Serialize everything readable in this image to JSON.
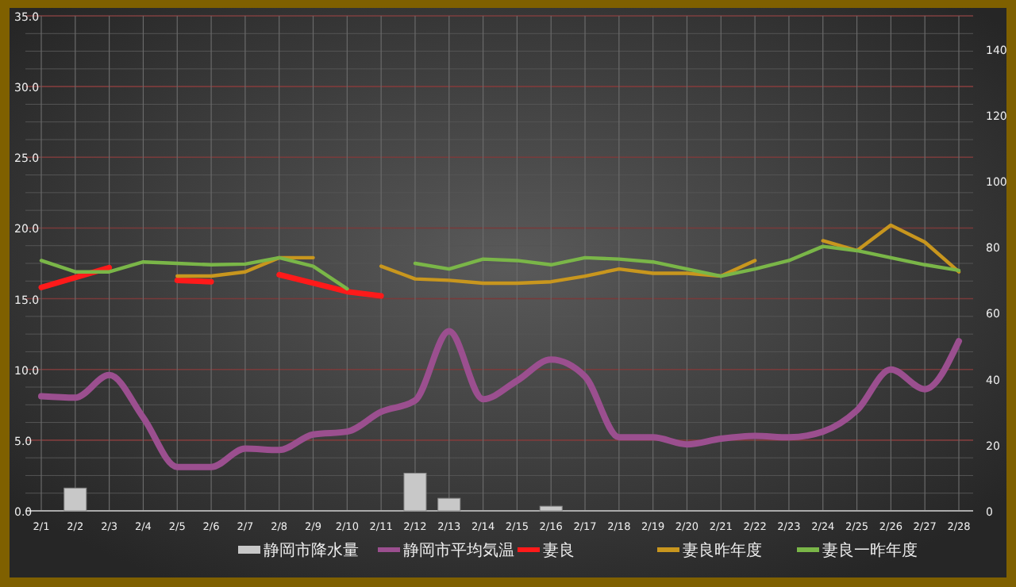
{
  "chart_data": {
    "type": "line",
    "categories": [
      "2/1",
      "2/2",
      "2/3",
      "2/4",
      "2/5",
      "2/6",
      "2/7",
      "2/8",
      "2/9",
      "2/10",
      "2/11",
      "2/12",
      "2/13",
      "2/14",
      "2/15",
      "2/16",
      "2/17",
      "2/18",
      "2/19",
      "2/20",
      "2/21",
      "2/22",
      "2/23",
      "2/24",
      "2/25",
      "2/26",
      "2/27",
      "2/28"
    ],
    "series": [
      {
        "name": "静岡市降水量",
        "type": "bar",
        "axis": "y2",
        "color": "#c8c8c8",
        "values": [
          null,
          6.9,
          null,
          null,
          null,
          null,
          null,
          null,
          null,
          null,
          null,
          11.4,
          3.8,
          null,
          null,
          1.4,
          null,
          null,
          null,
          null,
          null,
          null,
          null,
          null,
          null,
          null,
          null,
          null
        ]
      },
      {
        "name": "静岡市平均気温",
        "color": "#9b4f8f",
        "values": [
          8.1,
          8.0,
          9.6,
          6.6,
          3.1,
          3.1,
          4.4,
          4.3,
          5.4,
          5.6,
          7.0,
          7.8,
          12.7,
          7.9,
          9.2,
          10.7,
          9.5,
          5.2,
          5.2,
          4.7,
          5.1,
          5.3,
          5.2,
          5.6,
          7.1,
          10.0,
          8.6,
          12.0
        ]
      },
      {
        "name": "妻良",
        "color": "#ff1a1a",
        "values": [
          15.8,
          16.5,
          17.2,
          null,
          16.3,
          16.2,
          null,
          16.7,
          16.1,
          15.5,
          15.2,
          null,
          null,
          null,
          null,
          null,
          null,
          null,
          null,
          null,
          null,
          null,
          null,
          null,
          null,
          null,
          null,
          null
        ]
      },
      {
        "name": "妻良昨年度",
        "color": "#c8961e",
        "values": [
          null,
          null,
          null,
          null,
          16.6,
          16.6,
          16.9,
          17.9,
          17.9,
          null,
          17.3,
          16.4,
          16.3,
          16.1,
          16.1,
          16.2,
          16.6,
          17.1,
          16.8,
          16.8,
          16.6,
          17.7,
          null,
          19.1,
          18.4,
          20.2,
          19.0,
          16.9
        ]
      },
      {
        "name": "妻良一昨年度",
        "color": "#7ab648",
        "values": [
          17.7,
          16.9,
          16.9,
          17.6,
          17.5,
          17.4,
          17.45,
          17.9,
          17.3,
          15.7,
          null,
          17.5,
          17.1,
          17.8,
          17.7,
          17.4,
          17.9,
          17.8,
          17.6,
          17.1,
          16.6,
          17.1,
          17.7,
          18.7,
          18.4,
          17.9,
          17.4,
          17.0
        ]
      }
    ],
    "ylim": [
      0,
      35
    ],
    "yticks": [
      {
        "value": 0,
        "label": "0.0"
      },
      {
        "value": 5,
        "label": "5.0"
      },
      {
        "value": 10,
        "label": "10.0"
      },
      {
        "value": 15,
        "label": "15.0"
      },
      {
        "value": 20,
        "label": "20.0"
      },
      {
        "value": 25,
        "label": "25.0"
      },
      {
        "value": 30,
        "label": "30.0"
      },
      {
        "value": 35,
        "label": "35.0"
      }
    ],
    "y2lim": [
      0,
      150
    ],
    "y2ticks": [
      0,
      20,
      40,
      60,
      80,
      100,
      120,
      140
    ],
    "grid": true,
    "legend": "bottom"
  }
}
